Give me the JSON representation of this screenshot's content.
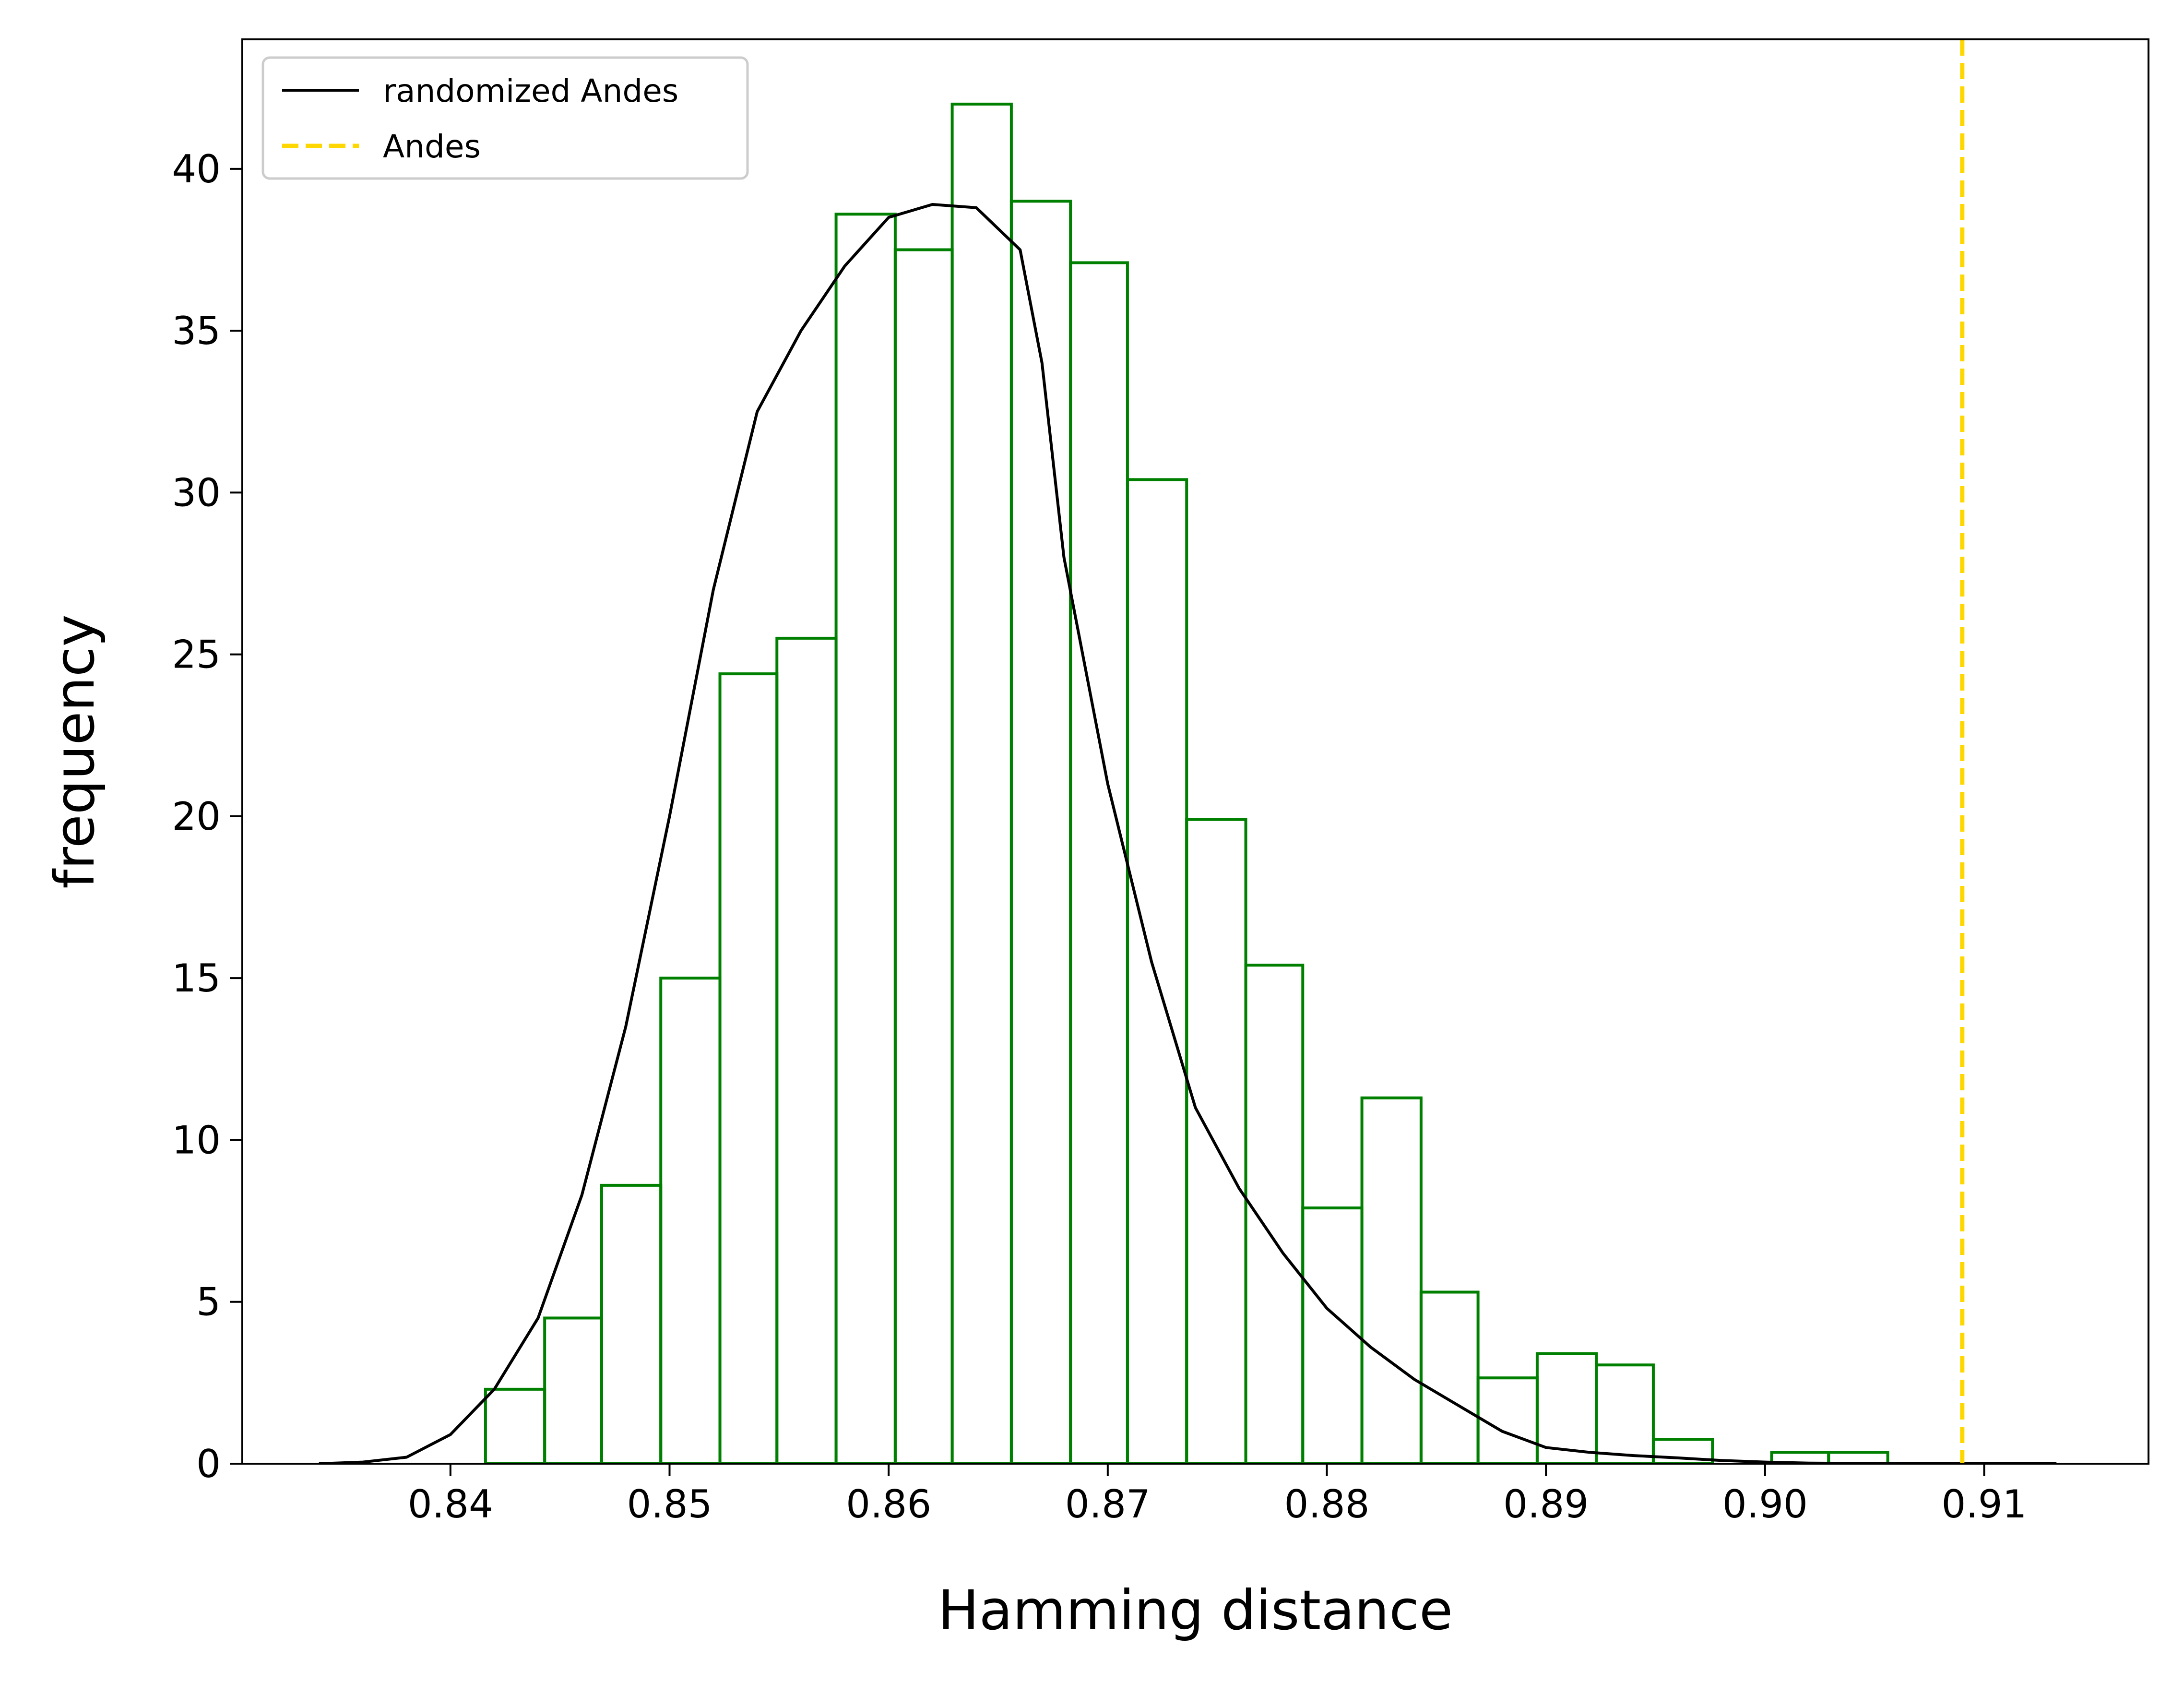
{
  "chart_data": {
    "type": "histogram",
    "title": "",
    "xlabel": "Hamming distance",
    "ylabel": "frequency",
    "xlim": [
      0.8305,
      0.9175
    ],
    "ylim": [
      0,
      44
    ],
    "x_ticks": [
      0.84,
      0.85,
      0.86,
      0.87,
      0.88,
      0.89,
      0.9,
      0.91
    ],
    "x_tick_labels": [
      "0.84",
      "0.85",
      "0.86",
      "0.87",
      "0.88",
      "0.89",
      "0.90",
      "0.91"
    ],
    "y_ticks": [
      0,
      5,
      10,
      15,
      20,
      25,
      30,
      35,
      40
    ],
    "y_tick_labels": [
      "0",
      "5",
      "10",
      "15",
      "20",
      "25",
      "30",
      "35",
      "40"
    ],
    "grid": false,
    "legend": {
      "placement": "top-left",
      "entries": [
        {
          "label": "randomized Andes",
          "color": "#000000",
          "style": "solid"
        },
        {
          "label": "Andes",
          "color": "#FFD700",
          "style": "dashed"
        }
      ]
    },
    "histogram": {
      "color": "#008000",
      "bin_edges": [
        0.8416,
        0.8443,
        0.8469,
        0.8496,
        0.8523,
        0.8549,
        0.8576,
        0.8603,
        0.8629,
        0.8656,
        0.8683,
        0.8709,
        0.8736,
        0.8763,
        0.8789,
        0.8816,
        0.8843,
        0.8869,
        0.8896,
        0.8923,
        0.8949,
        0.8976,
        0.9003,
        0.9029,
        0.9056
      ],
      "values": [
        2.3,
        4.5,
        8.6,
        15.0,
        24.4,
        25.5,
        38.6,
        37.5,
        42.0,
        39.0,
        37.1,
        30.4,
        19.9,
        15.4,
        7.9,
        11.3,
        5.3,
        2.65,
        3.4,
        3.05,
        0.75,
        0.0,
        0.35,
        0.35
      ]
    },
    "series": [
      {
        "name": "randomized Andes",
        "type": "line",
        "color": "#000000",
        "x": [
          0.834,
          0.836,
          0.838,
          0.84,
          0.842,
          0.844,
          0.846,
          0.848,
          0.85,
          0.852,
          0.854,
          0.856,
          0.858,
          0.86,
          0.862,
          0.864,
          0.866,
          0.867,
          0.868,
          0.87,
          0.872,
          0.874,
          0.876,
          0.878,
          0.88,
          0.882,
          0.884,
          0.886,
          0.888,
          0.89,
          0.892,
          0.894,
          0.896,
          0.898,
          0.9,
          0.902,
          0.904,
          0.906,
          0.908,
          0.91,
          0.9133
        ],
        "y": [
          0.0,
          0.05,
          0.2,
          0.9,
          2.3,
          4.5,
          8.3,
          13.5,
          20.0,
          27.0,
          32.5,
          35.0,
          37.0,
          38.5,
          38.9,
          38.8,
          37.5,
          34.0,
          28.0,
          21.0,
          15.5,
          11.0,
          8.5,
          6.5,
          4.8,
          3.6,
          2.6,
          1.8,
          1.0,
          0.5,
          0.35,
          0.25,
          0.18,
          0.1,
          0.05,
          0.02,
          0.01,
          0.0,
          0.0,
          0.0,
          0.0
        ]
      }
    ],
    "vertical_lines": [
      {
        "name": "Andes",
        "x": 0.909,
        "color": "#FFD700",
        "style": "dashed"
      }
    ]
  }
}
